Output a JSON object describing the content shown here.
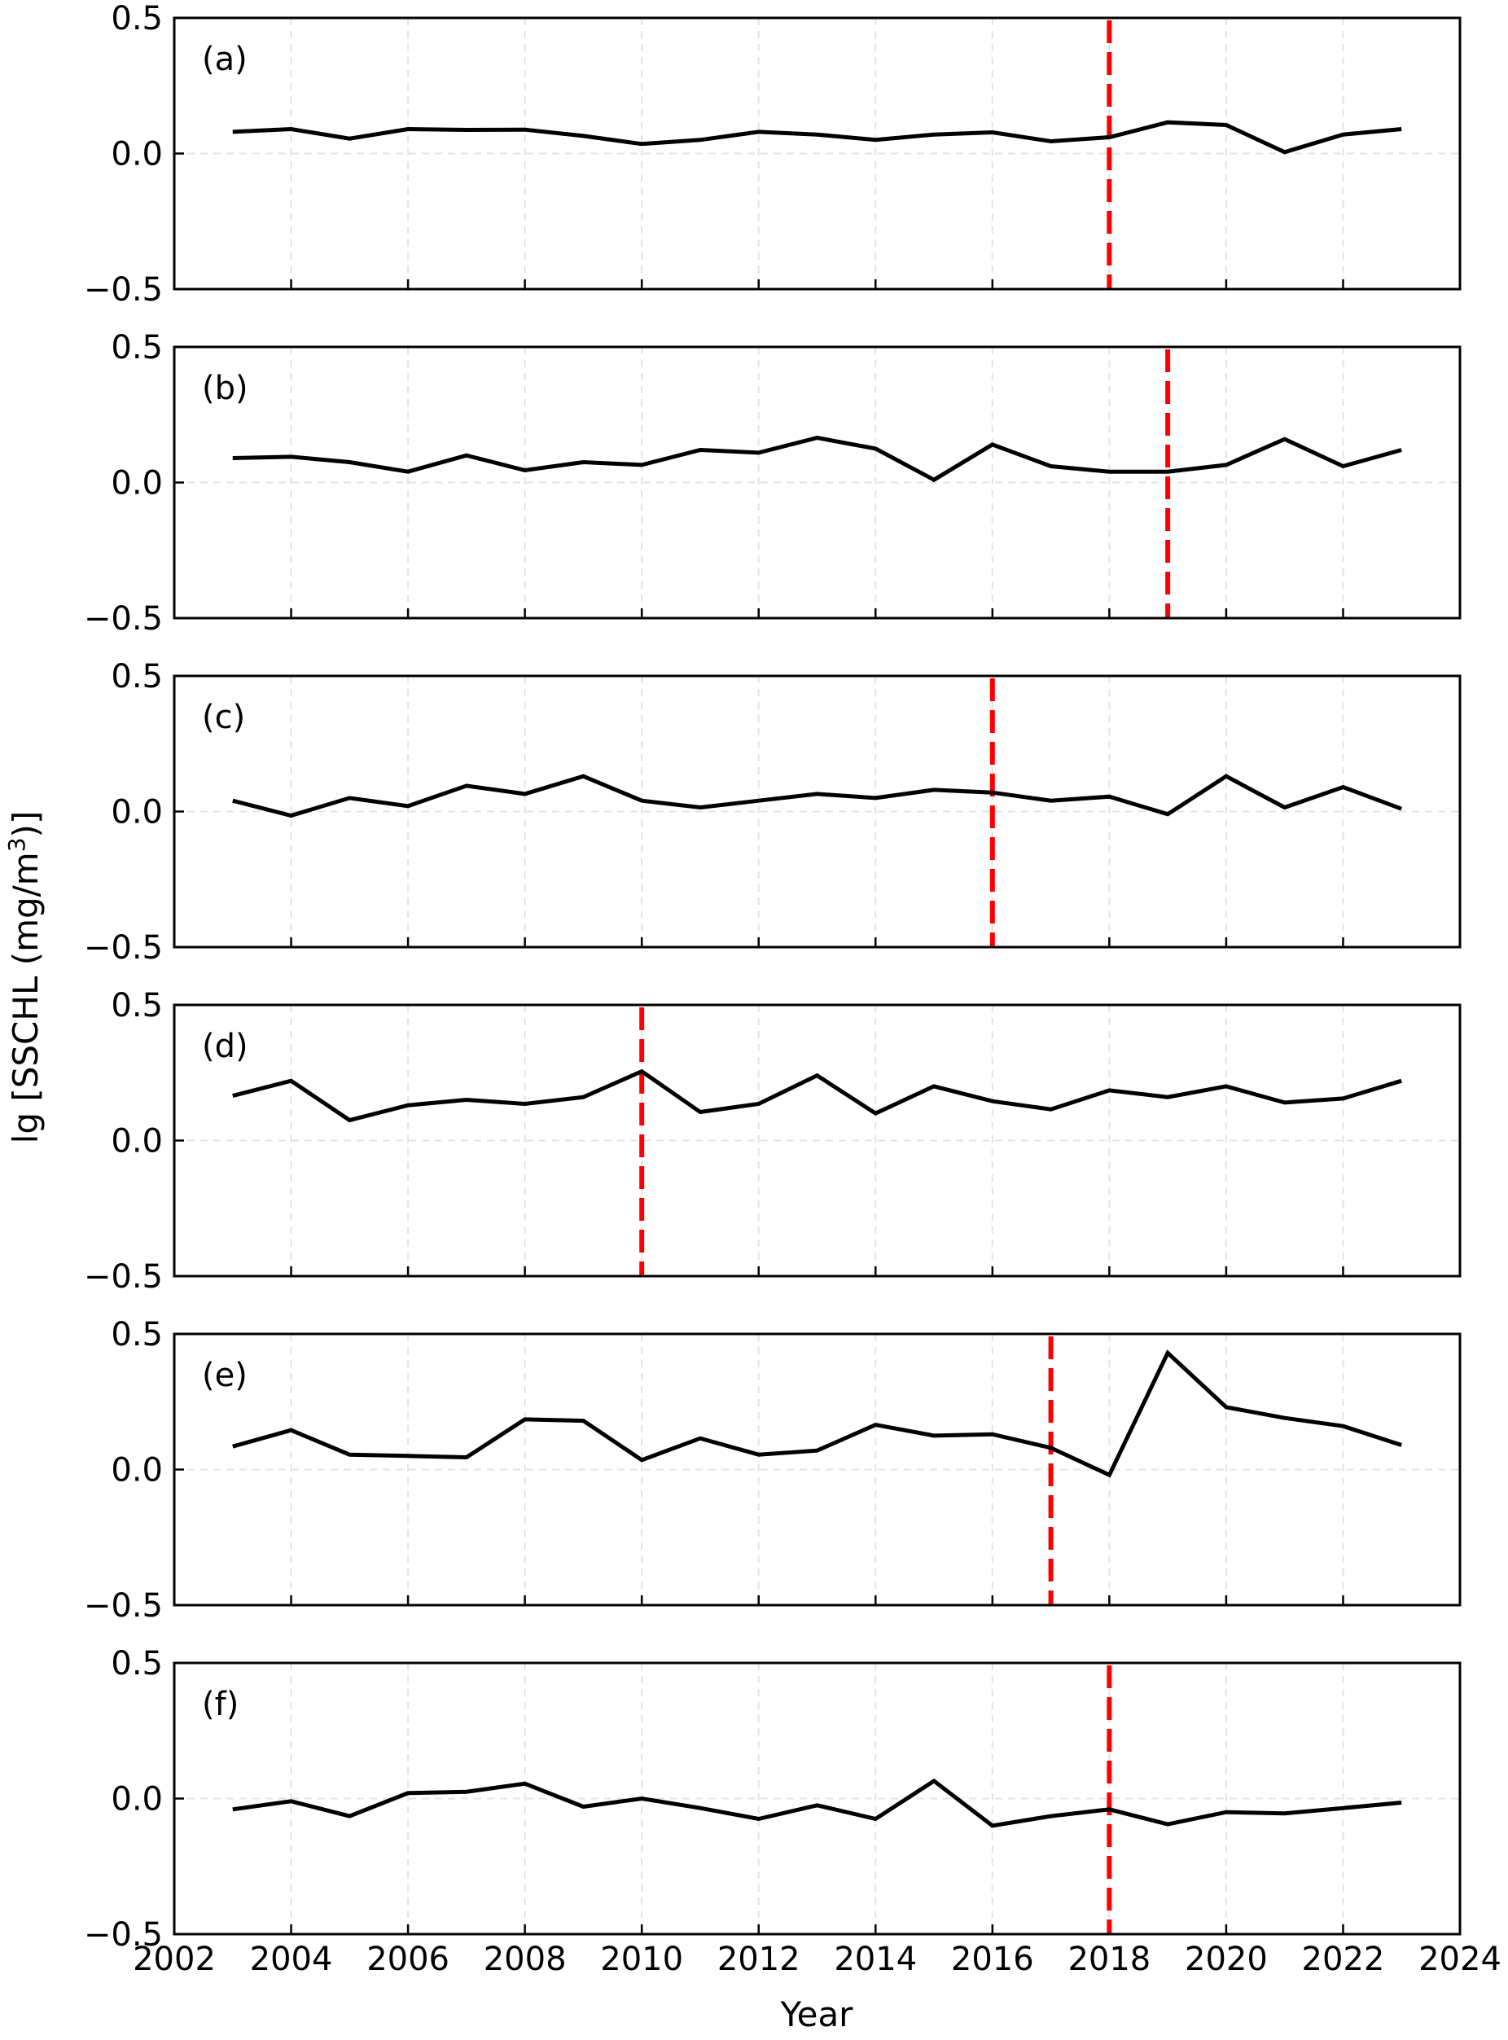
{
  "figure": {
    "xlabel": "Year",
    "ylabel_main": "lg [SSCHL (mg/m",
    "ylabel_sup": "3",
    "ylabel_end": ")]"
  },
  "chart_data": [
    {
      "type": "line",
      "panel_label": "(a)",
      "x": [
        2003,
        2004,
        2005,
        2006,
        2007,
        2008,
        2009,
        2010,
        2011,
        2012,
        2013,
        2014,
        2015,
        2016,
        2017,
        2018,
        2019,
        2020,
        2021,
        2022,
        2023
      ],
      "series": [
        {
          "values": [
            0.08,
            0.09,
            0.055,
            0.09,
            0.087,
            0.088,
            0.065,
            0.035,
            0.05,
            0.08,
            0.07,
            0.05,
            0.07,
            0.078,
            0.045,
            0.06,
            0.115,
            0.105,
            0.005,
            0.07,
            0.09
          ],
          "color": "#000000"
        }
      ],
      "change_point": 2018,
      "xlim": [
        2002,
        2024
      ],
      "ylim": [
        -0.5,
        0.5
      ],
      "xticks": [
        2002,
        2004,
        2006,
        2008,
        2010,
        2012,
        2014,
        2016,
        2018,
        2020,
        2022,
        2024
      ],
      "yticks": [
        -0.5,
        0.0,
        0.5
      ],
      "ytick_labels": [
        "−0.5",
        "0.0",
        "0.5"
      ],
      "grid": true
    },
    {
      "type": "line",
      "panel_label": "(b)",
      "x": [
        2003,
        2004,
        2005,
        2006,
        2007,
        2008,
        2009,
        2010,
        2011,
        2012,
        2013,
        2014,
        2015,
        2016,
        2017,
        2018,
        2019,
        2020,
        2021,
        2022,
        2023
      ],
      "series": [
        {
          "values": [
            0.09,
            0.095,
            0.075,
            0.04,
            0.1,
            0.045,
            0.075,
            0.065,
            0.12,
            0.11,
            0.165,
            0.125,
            0.01,
            0.14,
            0.06,
            0.04,
            0.04,
            0.065,
            0.16,
            0.06,
            0.12
          ],
          "color": "#000000"
        }
      ],
      "change_point": 2019,
      "xlim": [
        2002,
        2024
      ],
      "ylim": [
        -0.5,
        0.5
      ],
      "xticks": [
        2002,
        2004,
        2006,
        2008,
        2010,
        2012,
        2014,
        2016,
        2018,
        2020,
        2022,
        2024
      ],
      "yticks": [
        -0.5,
        0.0,
        0.5
      ],
      "ytick_labels": [
        "−0.5",
        "0.0",
        "0.5"
      ],
      "grid": true
    },
    {
      "type": "line",
      "panel_label": "(c)",
      "x": [
        2003,
        2004,
        2005,
        2006,
        2007,
        2008,
        2009,
        2010,
        2011,
        2012,
        2013,
        2014,
        2015,
        2016,
        2017,
        2018,
        2019,
        2020,
        2021,
        2022,
        2023
      ],
      "series": [
        {
          "values": [
            0.04,
            -0.015,
            0.05,
            0.02,
            0.095,
            0.065,
            0.13,
            0.04,
            0.015,
            0.04,
            0.065,
            0.05,
            0.08,
            0.07,
            0.04,
            0.055,
            -0.01,
            0.13,
            0.015,
            0.09,
            0.01
          ],
          "color": "#000000"
        }
      ],
      "change_point": 2016,
      "xlim": [
        2002,
        2024
      ],
      "ylim": [
        -0.5,
        0.5
      ],
      "xticks": [
        2002,
        2004,
        2006,
        2008,
        2010,
        2012,
        2014,
        2016,
        2018,
        2020,
        2022,
        2024
      ],
      "yticks": [
        -0.5,
        0.0,
        0.5
      ],
      "ytick_labels": [
        "−0.5",
        "0.0",
        "0.5"
      ],
      "grid": true
    },
    {
      "type": "line",
      "panel_label": "(d)",
      "x": [
        2003,
        2004,
        2005,
        2006,
        2007,
        2008,
        2009,
        2010,
        2011,
        2012,
        2013,
        2014,
        2015,
        2016,
        2017,
        2018,
        2019,
        2020,
        2021,
        2022,
        2023
      ],
      "series": [
        {
          "values": [
            0.165,
            0.22,
            0.075,
            0.13,
            0.15,
            0.135,
            0.16,
            0.255,
            0.105,
            0.135,
            0.24,
            0.1,
            0.2,
            0.145,
            0.115,
            0.185,
            0.16,
            0.2,
            0.14,
            0.155,
            0.22
          ],
          "color": "#000000"
        }
      ],
      "change_point": 2010,
      "xlim": [
        2002,
        2024
      ],
      "ylim": [
        -0.5,
        0.5
      ],
      "xticks": [
        2002,
        2004,
        2006,
        2008,
        2010,
        2012,
        2014,
        2016,
        2018,
        2020,
        2022,
        2024
      ],
      "yticks": [
        -0.5,
        0.0,
        0.5
      ],
      "ytick_labels": [
        "−0.5",
        "0.0",
        "0.5"
      ],
      "grid": true
    },
    {
      "type": "line",
      "panel_label": "(e)",
      "x": [
        2003,
        2004,
        2005,
        2006,
        2007,
        2008,
        2009,
        2010,
        2011,
        2012,
        2013,
        2014,
        2015,
        2016,
        2017,
        2018,
        2019,
        2020,
        2021,
        2022,
        2023
      ],
      "series": [
        {
          "values": [
            0.085,
            0.145,
            0.055,
            0.05,
            0.045,
            0.185,
            0.18,
            0.035,
            0.115,
            0.055,
            0.07,
            0.165,
            0.125,
            0.13,
            0.08,
            -0.02,
            0.43,
            0.23,
            0.19,
            0.16,
            0.09
          ],
          "color": "#000000"
        }
      ],
      "change_point": 2017,
      "xlim": [
        2002,
        2024
      ],
      "ylim": [
        -0.5,
        0.5
      ],
      "xticks": [
        2002,
        2004,
        2006,
        2008,
        2010,
        2012,
        2014,
        2016,
        2018,
        2020,
        2022,
        2024
      ],
      "yticks": [
        -0.5,
        0.0,
        0.5
      ],
      "ytick_labels": [
        "−0.5",
        "0.0",
        "0.5"
      ],
      "grid": true
    },
    {
      "type": "line",
      "panel_label": "(f)",
      "x": [
        2003,
        2004,
        2005,
        2006,
        2007,
        2008,
        2009,
        2010,
        2011,
        2012,
        2013,
        2014,
        2015,
        2016,
        2017,
        2018,
        2019,
        2020,
        2021,
        2022,
        2023
      ],
      "series": [
        {
          "values": [
            -0.04,
            -0.01,
            -0.065,
            0.02,
            0.025,
            0.055,
            -0.03,
            0.0,
            -0.035,
            -0.075,
            -0.025,
            -0.075,
            0.065,
            -0.1,
            -0.065,
            -0.04,
            -0.095,
            -0.05,
            -0.055,
            -0.035,
            -0.015
          ],
          "color": "#000000"
        }
      ],
      "change_point": 2018,
      "xlim": [
        2002,
        2024
      ],
      "ylim": [
        -0.5,
        0.5
      ],
      "xticks": [
        2002,
        2004,
        2006,
        2008,
        2010,
        2012,
        2014,
        2016,
        2018,
        2020,
        2022,
        2024
      ],
      "yticks": [
        -0.5,
        0.0,
        0.5
      ],
      "ytick_labels": [
        "−0.5",
        "0.0",
        "0.5"
      ],
      "grid": true
    }
  ],
  "colors": {
    "line": "#000000",
    "change_point": "#ff0000",
    "grid": "#e3e3e3",
    "frame": "#000000"
  }
}
